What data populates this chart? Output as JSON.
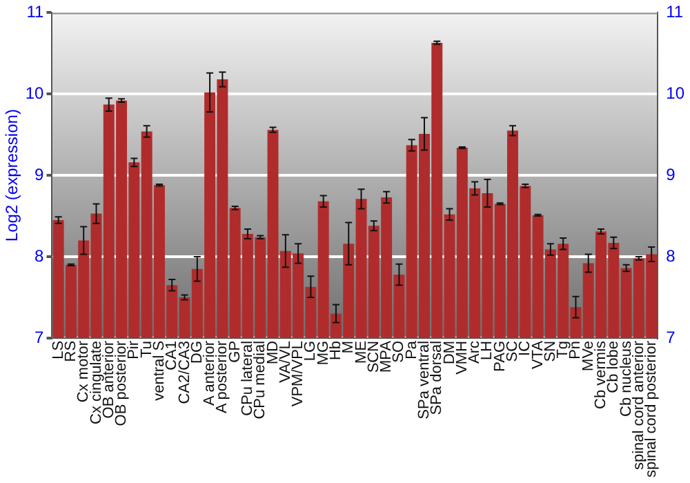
{
  "chart_data": {
    "type": "bar",
    "ylabel": "Log2 (expression)",
    "categories": [
      "LS",
      "RS",
      "Cx motor",
      "Cx cingulate",
      "OB anterior",
      "OB posterior",
      "Pir",
      "Tu",
      "ventral S",
      "CA1",
      "CA2/CA3",
      "DG",
      "A anterior",
      "A posterior",
      "GP",
      "CPu lateral",
      "CPu medial",
      "MD",
      "VA/VL",
      "VPM/VPL",
      "LG",
      "MG",
      "Hb",
      "M",
      "ME",
      "SCN",
      "MPA",
      "SO",
      "Pa",
      "SPa ventral",
      "SPa dorsal",
      "DM",
      "VMH",
      "Arc",
      "LH",
      "PAG",
      "SC",
      "IC",
      "VTA",
      "SN",
      "Tg",
      "Pn",
      "MVe",
      "Cb vermis",
      "Cb lobe",
      "Cb nucleus",
      "spinal cord anterior",
      "spinal cord posterior"
    ],
    "values": [
      8.45,
      7.9,
      8.2,
      8.53,
      9.87,
      9.92,
      9.16,
      9.54,
      8.88,
      7.65,
      7.5,
      7.85,
      10.02,
      10.18,
      8.6,
      8.28,
      8.24,
      9.56,
      8.07,
      8.04,
      7.63,
      8.68,
      7.3,
      8.16,
      8.71,
      8.38,
      8.73,
      7.78,
      9.37,
      9.51,
      10.63,
      8.52,
      9.34,
      8.84,
      8.78,
      8.65,
      9.55,
      8.87,
      8.51,
      8.09,
      8.16,
      7.38,
      7.92,
      8.31,
      8.17,
      7.86,
      7.98,
      8.03
    ],
    "errors": [
      0.04,
      0.01,
      0.17,
      0.12,
      0.08,
      0.02,
      0.05,
      0.07,
      0.01,
      0.07,
      0.03,
      0.15,
      0.24,
      0.09,
      0.02,
      0.06,
      0.02,
      0.03,
      0.2,
      0.12,
      0.13,
      0.07,
      0.11,
      0.26,
      0.12,
      0.06,
      0.07,
      0.13,
      0.07,
      0.2,
      0.02,
      0.07,
      0.01,
      0.08,
      0.17,
      0.01,
      0.06,
      0.02,
      0.01,
      0.07,
      0.07,
      0.13,
      0.11,
      0.03,
      0.07,
      0.04,
      0.02,
      0.09
    ],
    "color": "#b02c2c",
    "ylim": [
      7,
      11
    ],
    "yticks": [
      7,
      8,
      9,
      10,
      11
    ],
    "y2lim": [
      7,
      11
    ],
    "y2ticks": [
      7,
      8,
      9,
      10,
      11
    ],
    "grid": "y",
    "legend": false
  }
}
